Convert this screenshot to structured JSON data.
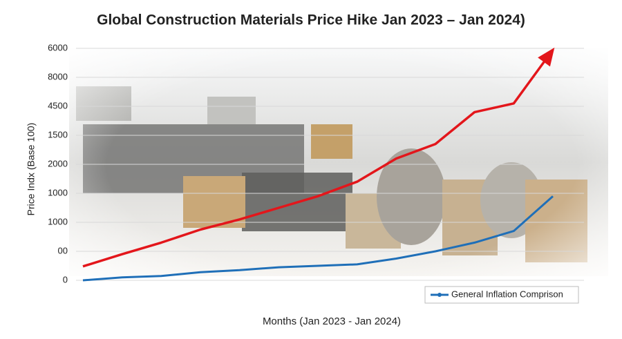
{
  "chart_data": {
    "type": "line",
    "title": "Global Construction Materials Price Hike Jan 2023 – Jan 2024)",
    "x_label": "Months (Jan 2023 - Jan 2024)",
    "y_label": "Price Indx (Base 100)",
    "categories": [
      null,
      null,
      null,
      null,
      null,
      null,
      null,
      null,
      null,
      null,
      null,
      null,
      null
    ],
    "series": [
      {
        "color": "#e3161b",
        "values": [
          0.48,
          0.9,
          1.3,
          1.75,
          2.1,
          2.5,
          2.9,
          3.4,
          4.2,
          4.7,
          5.8,
          6.1,
          7.95
        ]
      },
      {
        "name": "General Inflation Comprison",
        "color": "#1f6fb8",
        "values": [
          0,
          0.1,
          0.15,
          0.28,
          0.35,
          0.45,
          0.5,
          0.55,
          0.75,
          1.0,
          1.3,
          1.7,
          2.9
        ]
      }
    ],
    "ylim": [
      0,
      8
    ],
    "yticks": [
      0,
      {
        "value": 1,
        "label": "00"
      },
      {
        "value": 2,
        "label": "1000"
      },
      {
        "value": 3,
        "label": "1000"
      },
      {
        "value": 4,
        "label": "2000"
      },
      {
        "value": 5,
        "label": "1500"
      },
      {
        "value": 6,
        "label": "4500"
      },
      {
        "value": 7,
        "label": "8000"
      },
      {
        "value": 8,
        "label": "6000"
      }
    ],
    "grid": true,
    "legend": "lower right"
  }
}
